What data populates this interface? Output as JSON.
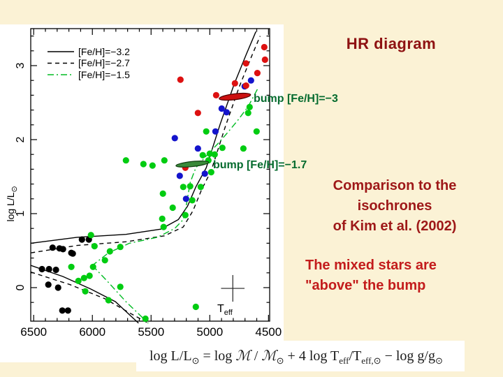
{
  "slide": {
    "title": "HR diagram",
    "comparison_lines": [
      "Comparison to the",
      "isochrones",
      "of Kim et al.  (2002)"
    ],
    "mixed_lines": [
      "The mixed stars are",
      "\"above\" the bump"
    ],
    "colors": {
      "background": "#fbf2d5",
      "title_red": "#8e1212",
      "comparison_red": "#9e1818",
      "mixed_red": "#c31c1c",
      "bump_green": "#056b2e"
    }
  },
  "formula": {
    "lhs": "log L/L",
    "sub1": "⊙",
    "eq": " = log ",
    "m1": "ℳ",
    "slash1": " / ",
    "m2": "ℳ",
    "sub2": "⊙",
    "mid": " + 4 log T",
    "sub3": "eff",
    "slash2": "/T",
    "sub4": "eff,⊙",
    "tail": " − log g/g",
    "sub5": "⊙"
  },
  "axis": {
    "ylabel_main": "log L/L",
    "ylabel_sub": "⊙",
    "xlabel_main": "T",
    "xlabel_sub": "eff"
  },
  "chart_data": {
    "type": "scatter",
    "xlabel": "T_eff",
    "ylabel": "log L/L_sun",
    "x_axis_reversed": true,
    "xlim": [
      6525,
      4490
    ],
    "ylim": [
      -0.453,
      3.5
    ],
    "x_major_ticks": [
      6500,
      6000,
      5500,
      5000,
      4500
    ],
    "x_minor_step": 100,
    "y_major_ticks": [
      0,
      1,
      2,
      3
    ],
    "y_minor_step": 0.2,
    "grid": false,
    "legend_position": "top-left-inside",
    "legend": [
      {
        "label": "[Fe/H]=−3.2",
        "style": "solid",
        "color": "#000000"
      },
      {
        "label": "[Fe/H]=−2.7",
        "style": "dashed",
        "color": "#000000"
      },
      {
        "label": "[Fe/H]=−1.5",
        "style": "dashdot",
        "color": "#00bb22"
      }
    ],
    "series": [
      {
        "name": "black",
        "color": "#000000",
        "points": [
          [
            6089,
            0.65
          ],
          [
            6030,
            0.65
          ],
          [
            6339,
            0.54
          ],
          [
            6280,
            0.53
          ],
          [
            6250,
            0.52
          ],
          [
            6179,
            0.47
          ],
          [
            6167,
            0.46
          ],
          [
            6429,
            0.25
          ],
          [
            6369,
            0.25
          ],
          [
            6310,
            0.24
          ],
          [
            6375,
            0.04
          ],
          [
            6292,
            0.0
          ],
          [
            6256,
            -0.31
          ],
          [
            6208,
            -0.31
          ]
        ]
      },
      {
        "name": "blue",
        "color": "#1414cc",
        "points": [
          [
            4649,
            2.8
          ],
          [
            4703,
            2.72
          ],
          [
            4899,
            2.42
          ],
          [
            4857,
            2.37
          ],
          [
            4952,
            2.11
          ],
          [
            5298,
            2.02
          ],
          [
            5101,
            1.88
          ],
          [
            5042,
            1.54
          ],
          [
            5256,
            1.51
          ],
          [
            5202,
            1.2
          ]
        ]
      },
      {
        "name": "red",
        "color": "#dd1111",
        "points": [
          [
            4536,
            3.25
          ],
          [
            4530,
            3.08
          ],
          [
            4691,
            3.03
          ],
          [
            4595,
            2.9
          ],
          [
            5250,
            2.81
          ],
          [
            4786,
            2.76
          ],
          [
            4691,
            2.73
          ],
          [
            4946,
            2.6
          ],
          [
            5101,
            2.36
          ],
          [
            5208,
            1.62
          ]
        ]
      },
      {
        "name": "green",
        "color": "#00cc11",
        "points": [
          [
            4661,
            2.44
          ],
          [
            4673,
            2.36
          ],
          [
            5030,
            2.11
          ],
          [
            4601,
            2.11
          ],
          [
            4714,
            1.88
          ],
          [
            4893,
            1.89
          ],
          [
            4958,
            1.8
          ],
          [
            5000,
            1.81
          ],
          [
            5060,
            1.79
          ],
          [
            5012,
            1.72
          ],
          [
            4988,
            1.56
          ],
          [
            5167,
            1.37
          ],
          [
            5226,
            1.36
          ],
          [
            5077,
            1.36
          ],
          [
            5149,
            1.18
          ],
          [
            5316,
            1.08
          ],
          [
            5714,
            1.72
          ],
          [
            5565,
            1.67
          ],
          [
            5488,
            1.65
          ],
          [
            5387,
            1.72
          ],
          [
            5399,
            1.27
          ],
          [
            5208,
            0.98
          ],
          [
            5405,
            0.93
          ],
          [
            5393,
            0.82
          ],
          [
            6012,
            0.71
          ],
          [
            5982,
            0.56
          ],
          [
            5851,
            0.49
          ],
          [
            5762,
            0.55
          ],
          [
            5893,
            0.37
          ],
          [
            6179,
            0.28
          ],
          [
            5994,
            0.28
          ],
          [
            6071,
            0.13
          ],
          [
            6024,
            0.16
          ],
          [
            6119,
            0.09
          ],
          [
            6060,
            -0.05
          ],
          [
            5762,
            0.01
          ],
          [
            5863,
            -0.17
          ],
          [
            5548,
            -0.42
          ],
          [
            5119,
            -0.26
          ]
        ]
      }
    ],
    "isochrones": [
      {
        "name": "[Fe/H]=−3.2",
        "style": "solid",
        "color": "#000000",
        "branches": [
          [
            [
              6524,
              0.6
            ],
            [
              6131,
              0.68
            ],
            [
              5714,
              0.72
            ],
            [
              5417,
              0.79
            ],
            [
              5268,
              0.92
            ],
            [
              5190,
              1.1
            ],
            [
              5119,
              1.36
            ],
            [
              5030,
              1.62
            ],
            [
              4911,
              2.21
            ],
            [
              4792,
              2.75
            ],
            [
              4690,
              3.15
            ],
            [
              4607,
              3.46
            ]
          ],
          [
            [
              6524,
              0.3
            ],
            [
              6250,
              0.15
            ],
            [
              6012,
              -0.02
            ],
            [
              5804,
              -0.19
            ],
            [
              5607,
              -0.48
            ]
          ]
        ]
      },
      {
        "name": "[Fe/H]=−2.7",
        "style": "dashed",
        "color": "#000000",
        "branches": [
          [
            [
              6524,
              0.47
            ],
            [
              6131,
              0.57
            ],
            [
              5714,
              0.62
            ],
            [
              5387,
              0.7
            ],
            [
              5226,
              0.82
            ],
            [
              5143,
              1.04
            ],
            [
              5071,
              1.32
            ],
            [
              4988,
              1.58
            ],
            [
              4869,
              2.17
            ],
            [
              4750,
              2.71
            ],
            [
              4643,
              3.13
            ],
            [
              4571,
              3.4
            ]
          ],
          [
            [
              6524,
              0.21
            ],
            [
              6190,
              0.04
            ],
            [
              5893,
              -0.15
            ],
            [
              5685,
              -0.34
            ],
            [
              5536,
              -0.47
            ]
          ]
        ]
      },
      {
        "name": "[Fe/H]=−1.5",
        "style": "dashdot",
        "color": "#00bb22",
        "branches": [
          [
            [
              4595,
              2.68
            ],
            [
              4672,
              2.45
            ],
            [
              4762,
              2.26
            ],
            [
              4851,
              2.09
            ],
            [
              4940,
              1.93
            ],
            [
              5030,
              1.78
            ],
            [
              5119,
              1.62
            ],
            [
              5167,
              1.42
            ],
            [
              5196,
              1.15
            ],
            [
              5226,
              0.92
            ],
            [
              5298,
              0.8
            ],
            [
              5446,
              0.68
            ],
            [
              5685,
              0.6
            ],
            [
              5863,
              0.47
            ],
            [
              6000,
              0.3
            ]
          ],
          [
            [
              6000,
              0.3
            ],
            [
              5863,
              0.07
            ],
            [
              5714,
              -0.19
            ],
            [
              5524,
              -0.48
            ]
          ]
        ]
      }
    ],
    "bump_ellipses": [
      {
        "label": "bump [Fe/H]=−3",
        "x": 4786,
        "y": 2.58,
        "rx_K": 135,
        "ry_L": 0.04,
        "rot": -7,
        "fill": "#cc1111",
        "stroke": "#4d0000"
      },
      {
        "label": "bump [Fe/H]=−1.7",
        "x": 5149,
        "y": 1.67,
        "rx_K": 140,
        "ry_L": 0.034,
        "rot": -6,
        "fill": "#3a8a3a",
        "stroke": "#103d10"
      }
    ],
    "annotations": [
      {
        "text": "bump [Fe/H]=−3",
        "x": 4627,
        "y": 2.54
      },
      {
        "text": "bump [Fe/H]=−1.7",
        "x": 4972,
        "y": 1.64
      }
    ],
    "error_cross": {
      "x": 4804,
      "y": -0.01,
      "xerr": 100,
      "yerr": 0.18
    }
  }
}
